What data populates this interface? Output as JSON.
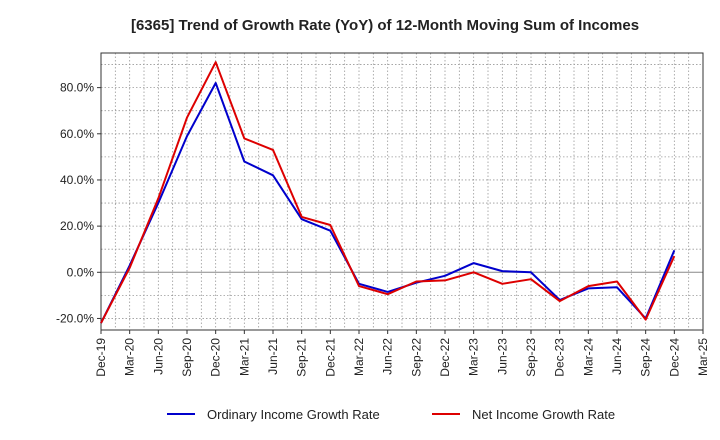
{
  "chart_data": {
    "type": "line",
    "title": "[6365]  Trend of Growth Rate (YoY) of 12-Month Moving Sum of Incomes",
    "xlabel": "",
    "ylabel": "",
    "ylim": [
      -25,
      95
    ],
    "yticks": [
      -20,
      0,
      20,
      40,
      60,
      80
    ],
    "ytick_labels": [
      "-20.0%",
      "0.0%",
      "20.0%",
      "40.0%",
      "60.0%",
      "80.0%"
    ],
    "categories": [
      "Dec-19",
      "Mar-20",
      "Jun-20",
      "Sep-20",
      "Dec-20",
      "Mar-21",
      "Jun-21",
      "Sep-21",
      "Dec-21",
      "Mar-22",
      "Jun-22",
      "Sep-22",
      "Dec-22",
      "Mar-23",
      "Jun-23",
      "Sep-23",
      "Dec-23",
      "Mar-24",
      "Jun-24",
      "Sep-24",
      "Dec-24",
      "Mar-25"
    ],
    "grid": true,
    "legend_position": "bottom",
    "series": [
      {
        "name": "Ordinary Income Growth Rate",
        "color": "#0000cc",
        "values": [
          -22,
          3,
          30,
          59,
          82,
          48,
          42,
          23,
          18,
          -5,
          -8.5,
          -4.5,
          -1.5,
          4,
          0.5,
          0,
          -12,
          -7,
          -6.5,
          -20,
          9.5,
          null
        ]
      },
      {
        "name": "Net Income Growth Rate",
        "color": "#dd0000",
        "values": [
          -22,
          2,
          32,
          67,
          91,
          58,
          53,
          24,
          20.5,
          -6,
          -9.5,
          -4,
          -3.5,
          0,
          -5,
          -3,
          -12.5,
          -6,
          -4,
          -20.5,
          7,
          null
        ]
      }
    ]
  }
}
